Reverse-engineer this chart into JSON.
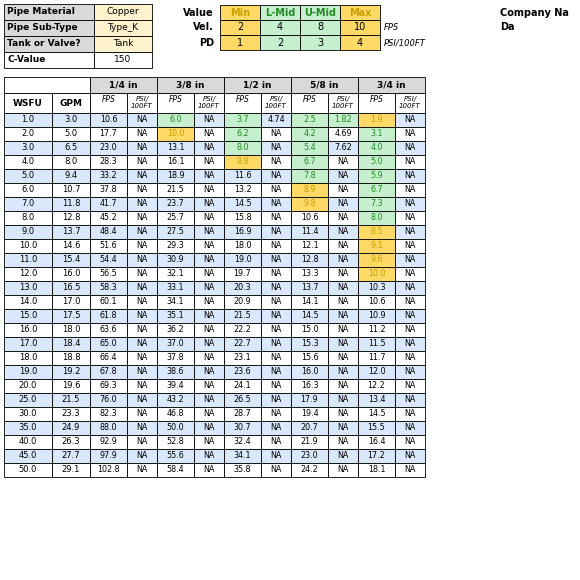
{
  "pipe_material": "Copper",
  "pipe_sub_type": "Type_K",
  "tank_or_valve": "Tank",
  "c_value": "150",
  "legend_labels": [
    "Min",
    "L-Mid",
    "U-Mid",
    "Max"
  ],
  "vel_values": [
    "2",
    "4",
    "8",
    "10"
  ],
  "pd_values": [
    "1",
    "2",
    "3",
    "4"
  ],
  "pipe_sizes": [
    "1/4 in",
    "3/8 in",
    "1/2 in",
    "5/8 in",
    "3/4 in"
  ],
  "wsfu": [
    1.0,
    2.0,
    3.0,
    4.0,
    5.0,
    6.0,
    7.0,
    8.0,
    9.0,
    10.0,
    11.0,
    12.0,
    13.0,
    14.0,
    15.0,
    16.0,
    17.0,
    18.0,
    19.0,
    20.0,
    25.0,
    30.0,
    35.0,
    40.0,
    45.0,
    50.0
  ],
  "gpm": [
    3.0,
    5.0,
    6.5,
    8.0,
    9.4,
    10.7,
    11.8,
    12.8,
    13.7,
    14.6,
    15.4,
    16.0,
    16.5,
    17.0,
    17.5,
    18.0,
    18.4,
    18.8,
    19.2,
    19.6,
    21.5,
    23.3,
    24.9,
    26.3,
    27.7,
    29.1
  ],
  "fps_14": [
    10.6,
    17.7,
    23.0,
    28.3,
    33.2,
    37.8,
    41.7,
    45.2,
    48.4,
    51.6,
    54.4,
    56.5,
    58.3,
    60.1,
    61.8,
    63.6,
    65.0,
    66.4,
    67.8,
    69.3,
    76.0,
    82.3,
    88.0,
    92.9,
    97.9,
    102.8
  ],
  "psi_14": [
    "NA",
    "NA",
    "NA",
    "NA",
    "NA",
    "NA",
    "NA",
    "NA",
    "NA",
    "NA",
    "NA",
    "NA",
    "NA",
    "NA",
    "NA",
    "NA",
    "NA",
    "NA",
    "NA",
    "NA",
    "NA",
    "NA",
    "NA",
    "NA",
    "NA",
    "NA"
  ],
  "fps_38": [
    6.0,
    10.0,
    13.1,
    16.1,
    18.9,
    21.5,
    23.7,
    25.7,
    27.5,
    29.3,
    30.9,
    32.1,
    33.1,
    34.1,
    35.1,
    36.2,
    37.0,
    37.8,
    38.6,
    39.4,
    43.2,
    46.8,
    50.0,
    52.8,
    55.6,
    58.4
  ],
  "psi_38": [
    "NA",
    "NA",
    "NA",
    "NA",
    "NA",
    "NA",
    "NA",
    "NA",
    "NA",
    "NA",
    "NA",
    "NA",
    "NA",
    "NA",
    "NA",
    "NA",
    "NA",
    "NA",
    "NA",
    "NA",
    "NA",
    "NA",
    "NA",
    "NA",
    "NA",
    "NA"
  ],
  "fps_12": [
    3.7,
    6.2,
    8.0,
    9.8,
    11.6,
    13.2,
    14.5,
    15.8,
    16.9,
    18.0,
    19.0,
    19.7,
    20.3,
    20.9,
    21.5,
    22.2,
    22.7,
    23.1,
    23.6,
    24.1,
    26.5,
    28.7,
    30.7,
    32.4,
    34.1,
    35.8
  ],
  "psi_12": [
    4.74,
    "NA",
    "NA",
    "NA",
    "NA",
    "NA",
    "NA",
    "NA",
    "NA",
    "NA",
    "NA",
    "NA",
    "NA",
    "NA",
    "NA",
    "NA",
    "NA",
    "NA",
    "NA",
    "NA",
    "NA",
    "NA",
    "NA",
    "NA",
    "NA",
    "NA"
  ],
  "fps_58": [
    2.5,
    4.2,
    5.4,
    6.7,
    7.8,
    8.9,
    9.8,
    10.6,
    11.4,
    12.1,
    12.8,
    13.3,
    13.7,
    14.1,
    14.5,
    15.0,
    15.3,
    15.6,
    16.0,
    16.3,
    17.9,
    19.4,
    20.7,
    21.9,
    23.0,
    24.2
  ],
  "psi_58": [
    1.82,
    4.69,
    7.62,
    "NA",
    "NA",
    "NA",
    "NA",
    "NA",
    "NA",
    "NA",
    "NA",
    "NA",
    "NA",
    "NA",
    "NA",
    "NA",
    "NA",
    "NA",
    "NA",
    "NA",
    "NA",
    "NA",
    "NA",
    "NA",
    "NA",
    "NA"
  ],
  "fps_34": [
    1.9,
    3.1,
    4.0,
    5.0,
    5.9,
    6.7,
    7.3,
    8.0,
    8.5,
    9.1,
    9.6,
    10.0,
    10.3,
    10.6,
    10.9,
    11.2,
    11.5,
    11.7,
    12.0,
    12.2,
    13.4,
    14.5,
    15.5,
    16.4,
    17.2,
    18.1
  ],
  "psi_34": [
    "NA",
    "NA",
    "NA",
    "NA",
    "NA",
    "NA",
    "NA",
    "NA",
    "NA",
    "NA",
    "NA",
    "NA",
    "NA",
    "NA",
    "NA",
    "NA",
    "NA",
    "NA",
    "NA",
    "NA",
    "NA",
    "NA",
    "NA",
    "NA",
    "NA",
    "NA"
  ],
  "min_color": "#FFD966",
  "lmid_color": "#C6EFCE",
  "umid_color": "#C6EFCE",
  "max_color": "#FFD966",
  "orange_text": "#C9A000",
  "green_text": "#228B22",
  "blue_row": "#DAE8FC",
  "white_row": "#FFFFFF",
  "gray_header": "#D9D9D9",
  "light_yellow": "#FFF2CC"
}
